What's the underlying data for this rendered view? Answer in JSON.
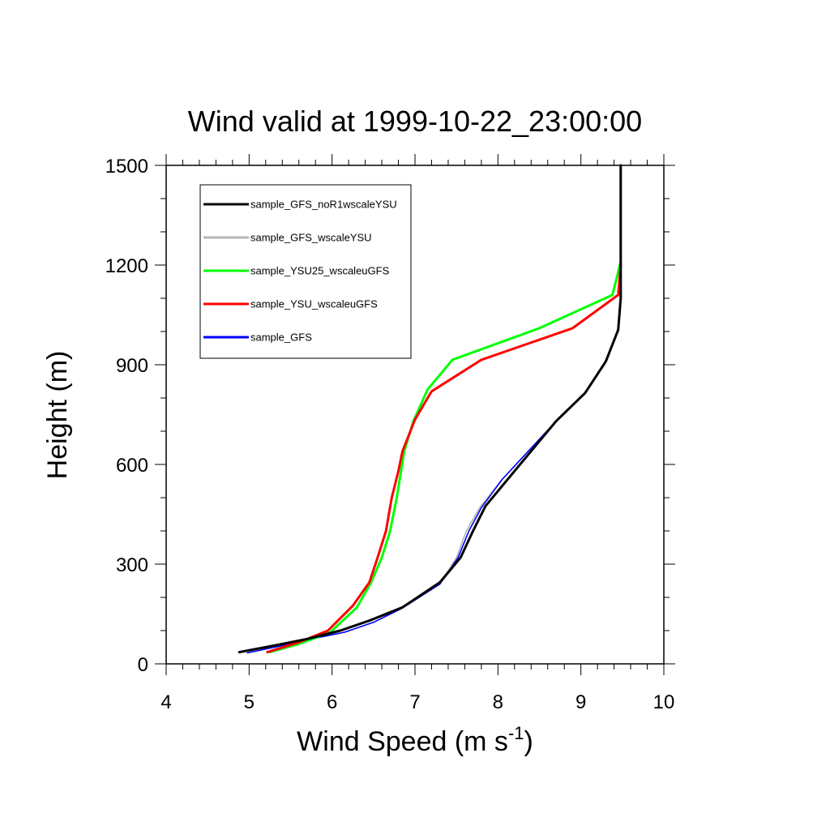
{
  "chart_data": {
    "type": "line",
    "title": "Wind valid at 1999-10-22_23:00:00",
    "xlabel": {
      "base": "Wind Speed (m s",
      "sup": "-1",
      "end": ")"
    },
    "ylabel": "Height (m)",
    "xlim": [
      4,
      10
    ],
    "ylim": [
      0,
      1500
    ],
    "x_ticks": [
      "4",
      "5",
      "6",
      "7",
      "8",
      "9",
      "10"
    ],
    "y_ticks": [
      "0",
      "300",
      "600",
      "900",
      "1200",
      "1500"
    ],
    "grid": false,
    "legend_position": "top-left",
    "series": [
      {
        "name": "sample_GFS_noR1wscaleYSU",
        "color": "#000000",
        "points": [
          [
            4.88,
            35
          ],
          [
            5.3,
            55
          ],
          [
            5.7,
            75
          ],
          [
            6.1,
            100
          ],
          [
            6.45,
            130
          ],
          [
            6.85,
            170
          ],
          [
            7.3,
            245
          ],
          [
            7.55,
            320
          ],
          [
            7.7,
            400
          ],
          [
            7.85,
            475
          ],
          [
            8.2,
            580
          ],
          [
            8.7,
            730
          ],
          [
            9.05,
            815
          ],
          [
            9.3,
            910
          ],
          [
            9.45,
            1005
          ],
          [
            9.48,
            1100
          ],
          [
            9.48,
            1200
          ],
          [
            9.48,
            1500
          ]
        ]
      },
      {
        "name": "sample_GFS_wscaleYSU",
        "color": "#b4b4b4",
        "points": [
          [
            4.98,
            33
          ],
          [
            5.4,
            55
          ],
          [
            5.75,
            75
          ],
          [
            6.15,
            95
          ],
          [
            6.5,
            125
          ],
          [
            6.85,
            168
          ],
          [
            7.3,
            240
          ],
          [
            7.5,
            320
          ],
          [
            7.62,
            400
          ],
          [
            7.78,
            470
          ],
          [
            8.05,
            555
          ],
          [
            8.7,
            730
          ],
          [
            9.05,
            815
          ],
          [
            9.3,
            910
          ],
          [
            9.45,
            1005
          ],
          [
            9.48,
            1100
          ],
          [
            9.48,
            1200
          ],
          [
            9.48,
            1500
          ]
        ]
      },
      {
        "name": "sample_YSU25_wscaleuGFS",
        "color": "#00ff00",
        "points": [
          [
            5.25,
            35
          ],
          [
            5.6,
            60
          ],
          [
            5.98,
            95
          ],
          [
            6.3,
            170
          ],
          [
            6.47,
            245
          ],
          [
            6.6,
            320
          ],
          [
            6.7,
            400
          ],
          [
            6.78,
            500
          ],
          [
            6.87,
            640
          ],
          [
            6.98,
            730
          ],
          [
            7.15,
            825
          ],
          [
            7.45,
            915
          ],
          [
            8.5,
            1010
          ],
          [
            9.38,
            1110
          ],
          [
            9.48,
            1210
          ]
        ]
      },
      {
        "name": "sample_YSU_wscaleuGFS",
        "color": "#ff0000",
        "points": [
          [
            5.22,
            35
          ],
          [
            5.6,
            65
          ],
          [
            5.95,
            100
          ],
          [
            6.25,
            175
          ],
          [
            6.45,
            245
          ],
          [
            6.55,
            320
          ],
          [
            6.65,
            400
          ],
          [
            6.72,
            500
          ],
          [
            6.8,
            580
          ],
          [
            6.85,
            640
          ],
          [
            7.0,
            735
          ],
          [
            7.2,
            820
          ],
          [
            7.8,
            915
          ],
          [
            8.9,
            1010
          ],
          [
            9.45,
            1110
          ],
          [
            9.48,
            1200
          ]
        ]
      },
      {
        "name": "sample_GFS",
        "color": "#0000ff",
        "points": [
          [
            4.98,
            33
          ],
          [
            5.4,
            55
          ],
          [
            5.75,
            75
          ],
          [
            6.15,
            95
          ],
          [
            6.5,
            125
          ],
          [
            6.85,
            168
          ],
          [
            7.3,
            240
          ],
          [
            7.52,
            320
          ],
          [
            7.65,
            400
          ],
          [
            7.8,
            470
          ],
          [
            8.05,
            555
          ],
          [
            8.7,
            730
          ],
          [
            9.05,
            815
          ],
          [
            9.3,
            910
          ],
          [
            9.45,
            1005
          ],
          [
            9.48,
            1100
          ],
          [
            9.48,
            1200
          ],
          [
            9.48,
            1500
          ]
        ]
      }
    ]
  }
}
